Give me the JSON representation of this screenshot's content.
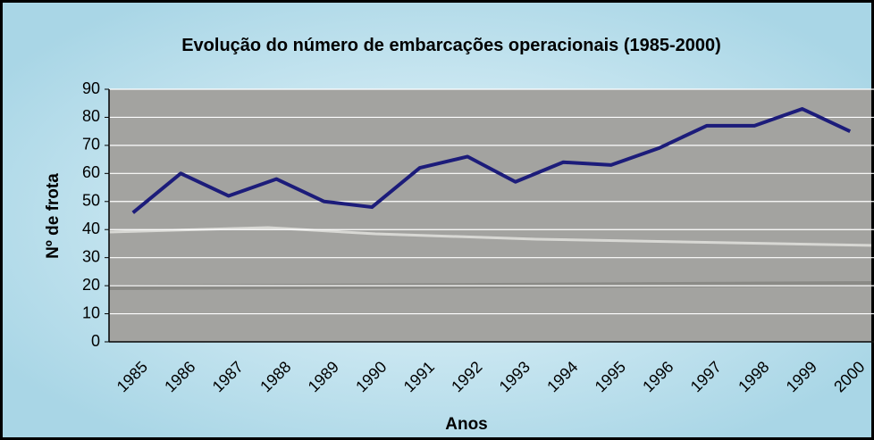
{
  "chart_data": {
    "type": "line",
    "title": "Evolução do número de embarcações operacionais (1985-2000)",
    "x_label": "Anos",
    "y_label": "Nº de frota",
    "categories": [
      "1985",
      "1986",
      "1987",
      "1988",
      "1989",
      "1990",
      "1991",
      "1992",
      "1993",
      "1994",
      "1995",
      "1996",
      "1997",
      "1998",
      "1999",
      "2000"
    ],
    "values": [
      46,
      60,
      52,
      58,
      50,
      48,
      62,
      66,
      57,
      64,
      63,
      69,
      77,
      77,
      83,
      75
    ],
    "color": "#1c1c7a",
    "ylim": [
      0,
      90
    ],
    "yticks": [
      0,
      10,
      20,
      30,
      40,
      50,
      60,
      70,
      80,
      90
    ],
    "grid": true
  }
}
